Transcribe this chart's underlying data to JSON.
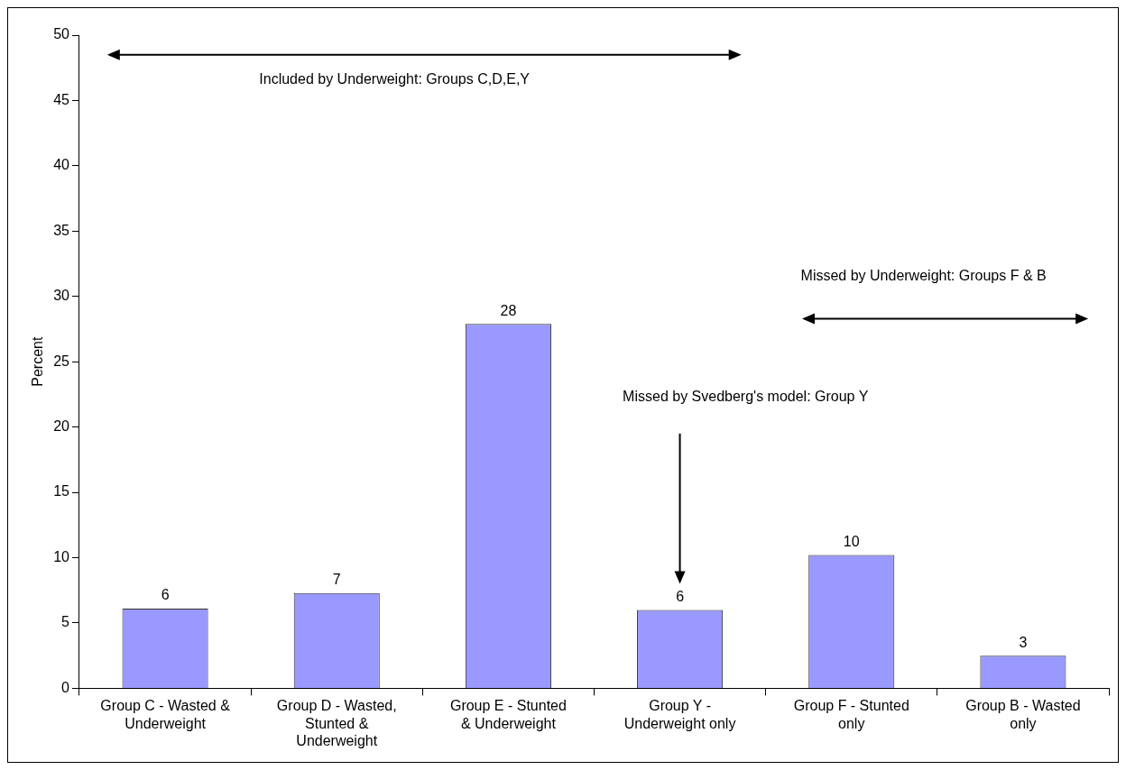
{
  "chart_data": {
    "type": "bar",
    "ylabel": "Percent",
    "categories": [
      "Group C - Wasted & Underweight",
      "Group D - Wasted, Stunted & Underweight",
      "Group E - Stunted & Underweight",
      "Group Y - Underweight only",
      "Group F - Stunted only",
      "Group B - Wasted only"
    ],
    "values": [
      6.1,
      7.3,
      27.9,
      6,
      10.2,
      2.5
    ],
    "value_labels": [
      "6",
      "7",
      "28",
      "6",
      "10",
      "3"
    ],
    "color": "#9999ff",
    "ylim": [
      0,
      50
    ],
    "yticks": [
      0,
      5,
      10,
      15,
      20,
      25,
      30,
      35,
      40,
      45,
      50
    ],
    "grid": false,
    "legend": false,
    "annotations": [
      "Included by Underweight: Groups C,D,E,Y",
      "Missed by Underweight: Groups F & B",
      "Missed by Svedberg's model: Group Y"
    ]
  }
}
